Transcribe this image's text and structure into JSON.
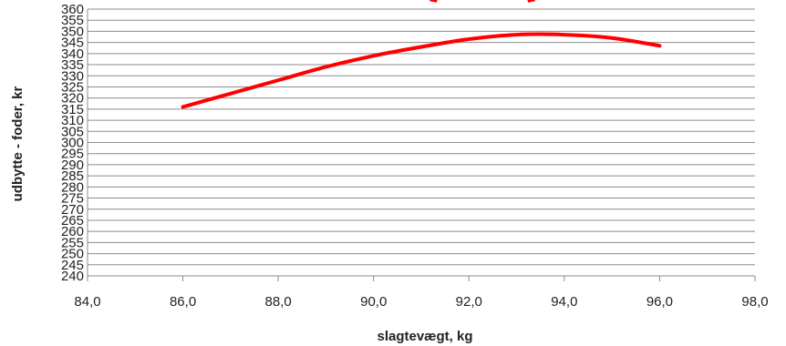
{
  "chart_data": {
    "type": "line",
    "title": "",
    "xlabel": "slagtevægt, kg",
    "ylabel": "udbytte - foder, kr",
    "xlim": [
      84,
      98
    ],
    "ylim": [
      240,
      360
    ],
    "x_ticks": [
      "84,0",
      "86,0",
      "88,0",
      "90,0",
      "92,0",
      "94,0",
      "96,0",
      "98,0"
    ],
    "y_ticks": [
      "240",
      "245",
      "250",
      "255",
      "260",
      "265",
      "270",
      "275",
      "280",
      "285",
      "290",
      "295",
      "300",
      "305",
      "310",
      "315",
      "320",
      "325",
      "330",
      "335",
      "340",
      "345",
      "350",
      "355",
      "360"
    ],
    "grid": true,
    "legend": "none",
    "series": [
      {
        "color": "#ff0000",
        "x": [
          86,
          87,
          88,
          89,
          90,
          91,
          92,
          93,
          94,
          95,
          96
        ],
        "y": [
          316,
          322,
          328,
          334,
          339,
          343,
          346.5,
          348.5,
          348.5,
          347,
          343.5
        ]
      }
    ],
    "decoration_color": "#ff0000"
  }
}
